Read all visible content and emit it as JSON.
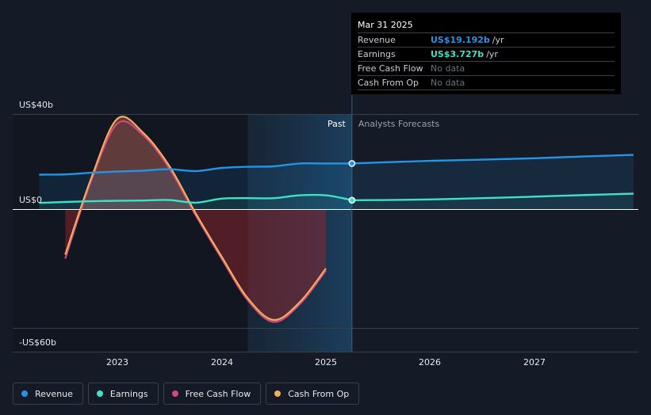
{
  "chart_data": {
    "type": "line",
    "y_axis": {
      "top_label": "US$40b",
      "zero_label": "US$0",
      "bottom_label": "-US$60b",
      "ylim": [
        -60,
        40
      ]
    },
    "x_ticks": [
      "2023",
      "2024",
      "2025",
      "2026",
      "2027"
    ],
    "regions": {
      "past_label": "Past",
      "forecast_label": "Analysts Forecasts"
    },
    "series": [
      {
        "name": "Revenue",
        "color": "#2394e6",
        "points": [
          [
            2022.25,
            14.5
          ],
          [
            2022.5,
            14.6
          ],
          [
            2022.75,
            15.3
          ],
          [
            2023.0,
            15.8
          ],
          [
            2023.25,
            16.2
          ],
          [
            2023.5,
            16.8
          ],
          [
            2023.75,
            16.0
          ],
          [
            2024.0,
            17.3
          ],
          [
            2024.25,
            17.8
          ],
          [
            2024.5,
            18.0
          ],
          [
            2024.75,
            19.2
          ],
          [
            2025.0,
            19.2
          ],
          [
            2025.25,
            19.192
          ]
        ],
        "forecast": [
          [
            2025.25,
            19.192
          ],
          [
            2025.5,
            19.6
          ],
          [
            2026.0,
            20.3
          ],
          [
            2026.5,
            20.8
          ],
          [
            2027.0,
            21.4
          ],
          [
            2027.5,
            22.2
          ],
          [
            2027.95,
            22.8
          ]
        ]
      },
      {
        "name": "Earnings",
        "color": "#3fe0c5",
        "points": [
          [
            2022.25,
            2.6
          ],
          [
            2022.5,
            3.0
          ],
          [
            2022.75,
            3.3
          ],
          [
            2023.0,
            3.5
          ],
          [
            2023.25,
            3.6
          ],
          [
            2023.5,
            3.8
          ],
          [
            2023.75,
            2.7
          ],
          [
            2024.0,
            4.4
          ],
          [
            2024.25,
            4.6
          ],
          [
            2024.5,
            4.6
          ],
          [
            2024.75,
            5.8
          ],
          [
            2025.0,
            5.8
          ],
          [
            2025.25,
            3.727
          ]
        ],
        "forecast": [
          [
            2025.25,
            3.727
          ],
          [
            2025.75,
            3.9
          ],
          [
            2026.25,
            4.3
          ],
          [
            2026.75,
            4.9
          ],
          [
            2027.25,
            5.6
          ],
          [
            2027.95,
            6.5
          ]
        ]
      },
      {
        "name": "Free Cash Flow",
        "color": "#d6457f",
        "points": [
          [
            2022.5,
            -25
          ],
          [
            2022.75,
            12
          ],
          [
            2023.0,
            36
          ],
          [
            2023.25,
            31
          ],
          [
            2023.5,
            17
          ],
          [
            2023.75,
            -3
          ],
          [
            2024.0,
            -25
          ],
          [
            2024.25,
            -46
          ],
          [
            2024.5,
            -57
          ],
          [
            2024.75,
            -48
          ],
          [
            2025.0,
            -31
          ]
        ]
      },
      {
        "name": "Cash From Op",
        "color": "#eeae5a",
        "points": [
          [
            2022.5,
            -23
          ],
          [
            2022.75,
            13
          ],
          [
            2023.0,
            38
          ],
          [
            2023.25,
            32
          ],
          [
            2023.5,
            18
          ],
          [
            2023.75,
            -2
          ],
          [
            2024.0,
            -24
          ],
          [
            2024.25,
            -45
          ],
          [
            2024.5,
            -56
          ],
          [
            2024.75,
            -47
          ],
          [
            2025.0,
            -30
          ]
        ]
      }
    ]
  },
  "tooltip": {
    "date": "Mar 31 2025",
    "rows": [
      {
        "name": "Revenue",
        "value": "US$19.192b",
        "unit": "/yr",
        "color": "#2394e6"
      },
      {
        "name": "Earnings",
        "value": "US$3.727b",
        "unit": "/yr",
        "color": "#3fe0c5"
      },
      {
        "name": "Free Cash Flow",
        "value": "No data"
      },
      {
        "name": "Cash From Op",
        "value": "No data"
      }
    ]
  },
  "legend": [
    {
      "label": "Revenue",
      "color": "#2394e6"
    },
    {
      "label": "Earnings",
      "color": "#3fe0c5"
    },
    {
      "label": "Free Cash Flow",
      "color": "#d6457f"
    },
    {
      "label": "Cash From Op",
      "color": "#eeae5a"
    }
  ]
}
